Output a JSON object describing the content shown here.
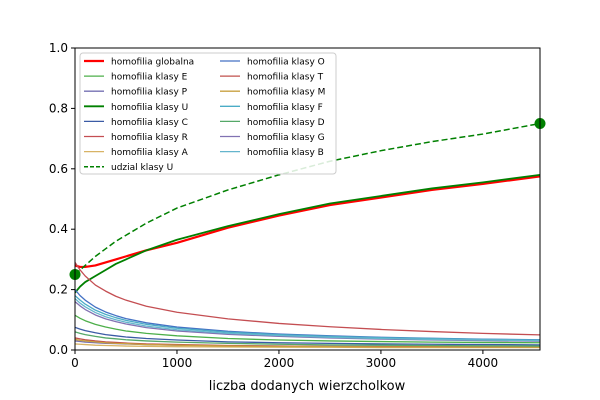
{
  "chart_data": {
    "type": "line",
    "title": "",
    "xlabel": "liczba dodanych wierzcholkow",
    "ylabel": "",
    "xlim": [
      0,
      4560
    ],
    "ylim": [
      0,
      1.0
    ],
    "xticks": [
      0,
      1000,
      2000,
      3000,
      4000
    ],
    "yticks": [
      0.0,
      0.2,
      0.4,
      0.6,
      0.8,
      1.0
    ],
    "xtick_labels": [
      "0",
      "1000",
      "2000",
      "3000",
      "4000"
    ],
    "ytick_labels": [
      "0.0",
      "0.2",
      "0.4",
      "0.6",
      "0.8",
      "1.0"
    ],
    "grid": false,
    "legend_placement": "top-left",
    "legend_columns": 2,
    "x": [
      0,
      50,
      100,
      200,
      300,
      400,
      500,
      700,
      1000,
      1500,
      2000,
      2500,
      3000,
      3500,
      4000,
      4560
    ],
    "series": [
      {
        "name": "homofilia globalna",
        "color": "#ff0000",
        "style": "solid",
        "width": 2.2,
        "values": [
          0.28,
          0.275,
          0.275,
          0.28,
          0.29,
          0.3,
          0.31,
          0.33,
          0.355,
          0.405,
          0.445,
          0.48,
          0.505,
          0.53,
          0.55,
          0.575
        ]
      },
      {
        "name": "homofilia klasy E",
        "color": "#4daf4a",
        "style": "solid",
        "width": 1.3,
        "values": [
          0.115,
          0.105,
          0.097,
          0.085,
          0.076,
          0.069,
          0.063,
          0.055,
          0.047,
          0.038,
          0.033,
          0.03,
          0.028,
          0.026,
          0.025,
          0.024
        ]
      },
      {
        "name": "homofilia klasy P",
        "color": "#7570b3",
        "style": "solid",
        "width": 1.3,
        "values": [
          0.03,
          0.028,
          0.026,
          0.024,
          0.022,
          0.021,
          0.02,
          0.018,
          0.016,
          0.014,
          0.013,
          0.012,
          0.012,
          0.011,
          0.011,
          0.011
        ]
      },
      {
        "name": "homofilia klasy U",
        "color": "#008000",
        "style": "solid",
        "width": 1.8,
        "values": [
          0.19,
          0.21,
          0.225,
          0.245,
          0.265,
          0.285,
          0.3,
          0.33,
          0.365,
          0.41,
          0.45,
          0.485,
          0.51,
          0.535,
          0.555,
          0.58
        ]
      },
      {
        "name": "homofilia klasy C",
        "color": "#3b5ba5",
        "style": "solid",
        "width": 1.3,
        "values": [
          0.075,
          0.069,
          0.064,
          0.057,
          0.051,
          0.047,
          0.043,
          0.038,
          0.033,
          0.027,
          0.024,
          0.022,
          0.02,
          0.019,
          0.018,
          0.017
        ]
      },
      {
        "name": "homofilia klasy R",
        "color": "#c44e52",
        "style": "solid",
        "width": 1.3,
        "values": [
          0.29,
          0.265,
          0.245,
          0.215,
          0.195,
          0.178,
          0.165,
          0.145,
          0.125,
          0.103,
          0.088,
          0.077,
          0.068,
          0.061,
          0.055,
          0.05
        ]
      },
      {
        "name": "homofilia klasy A",
        "color": "#d8b365",
        "style": "solid",
        "width": 1.3,
        "values": [
          0.02,
          0.019,
          0.018,
          0.016,
          0.015,
          0.014,
          0.013,
          0.012,
          0.011,
          0.01,
          0.009,
          0.009,
          0.008,
          0.008,
          0.008,
          0.008
        ]
      },
      {
        "name": "udzial klasy U",
        "color": "#008000",
        "style": "dashed",
        "width": 1.5,
        "values": [
          0.25,
          0.265,
          0.28,
          0.31,
          0.335,
          0.36,
          0.38,
          0.42,
          0.47,
          0.53,
          0.58,
          0.625,
          0.66,
          0.69,
          0.715,
          0.75
        ]
      },
      {
        "name": "homofilia klasy O",
        "color": "#4472c4",
        "style": "solid",
        "width": 1.3,
        "values": [
          0.2,
          0.18,
          0.165,
          0.142,
          0.126,
          0.114,
          0.104,
          0.09,
          0.076,
          0.062,
          0.053,
          0.047,
          0.042,
          0.039,
          0.036,
          0.034
        ]
      },
      {
        "name": "homofilia klasy T",
        "color": "#c0504d",
        "style": "solid",
        "width": 1.3,
        "values": [
          0.04,
          0.037,
          0.034,
          0.03,
          0.027,
          0.025,
          0.023,
          0.02,
          0.018,
          0.015,
          0.013,
          0.012,
          0.011,
          0.011,
          0.01,
          0.01
        ]
      },
      {
        "name": "homofilia klasy M",
        "color": "#c8a040",
        "style": "solid",
        "width": 1.3,
        "values": [
          0.035,
          0.032,
          0.03,
          0.027,
          0.024,
          0.022,
          0.021,
          0.018,
          0.016,
          0.013,
          0.012,
          0.011,
          0.01,
          0.01,
          0.009,
          0.009
        ]
      },
      {
        "name": "homofilia klasy F",
        "color": "#4bacc6",
        "style": "solid",
        "width": 1.3,
        "values": [
          0.18,
          0.165,
          0.152,
          0.132,
          0.118,
          0.107,
          0.098,
          0.085,
          0.072,
          0.059,
          0.051,
          0.045,
          0.041,
          0.038,
          0.035,
          0.033
        ]
      },
      {
        "name": "homofilia klasy D",
        "color": "#55a868",
        "style": "solid",
        "width": 1.3,
        "values": [
          0.06,
          0.055,
          0.051,
          0.045,
          0.04,
          0.037,
          0.034,
          0.03,
          0.026,
          0.022,
          0.019,
          0.017,
          0.016,
          0.015,
          0.014,
          0.013
        ]
      },
      {
        "name": "homofilia klasy G",
        "color": "#8172b2",
        "style": "solid",
        "width": 1.3,
        "values": [
          0.16,
          0.146,
          0.134,
          0.116,
          0.103,
          0.094,
          0.086,
          0.074,
          0.063,
          0.052,
          0.045,
          0.04,
          0.036,
          0.033,
          0.031,
          0.029
        ]
      },
      {
        "name": "homofilia klasy B",
        "color": "#64b5cd",
        "style": "solid",
        "width": 1.3,
        "values": [
          0.17,
          0.155,
          0.143,
          0.124,
          0.11,
          0.1,
          0.092,
          0.079,
          0.067,
          0.055,
          0.048,
          0.042,
          0.038,
          0.035,
          0.033,
          0.031
        ]
      }
    ],
    "markers": [
      {
        "x": 0,
        "y": 0.25,
        "color": "#008000"
      },
      {
        "x": 4560,
        "y": 0.75,
        "color": "#008000"
      }
    ]
  }
}
